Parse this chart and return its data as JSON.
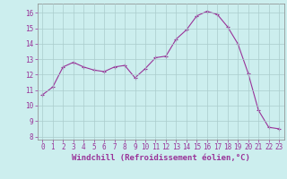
{
  "x": [
    0,
    1,
    2,
    3,
    4,
    5,
    6,
    7,
    8,
    9,
    10,
    11,
    12,
    13,
    14,
    15,
    16,
    17,
    18,
    19,
    20,
    21,
    22,
    23
  ],
  "y": [
    10.7,
    11.2,
    12.5,
    12.8,
    12.5,
    12.3,
    12.2,
    12.5,
    12.6,
    11.8,
    12.4,
    13.1,
    13.2,
    14.3,
    14.9,
    15.8,
    16.1,
    15.9,
    15.1,
    14.0,
    12.1,
    9.7,
    8.6,
    8.5
  ],
  "xlabel": "Windchill (Refroidissement éolien,°C)",
  "ylim": [
    7.8,
    16.6
  ],
  "xlim": [
    -0.5,
    23.5
  ],
  "yticks": [
    8,
    9,
    10,
    11,
    12,
    13,
    14,
    15,
    16
  ],
  "xticks": [
    0,
    1,
    2,
    3,
    4,
    5,
    6,
    7,
    8,
    9,
    10,
    11,
    12,
    13,
    14,
    15,
    16,
    17,
    18,
    19,
    20,
    21,
    22,
    23
  ],
  "line_color": "#993399",
  "marker": "+",
  "background_color": "#cceeee",
  "grid_color": "#aacccc",
  "tick_label_color": "#993399",
  "xlabel_color": "#993399",
  "tick_fontsize": 5.5,
  "xlabel_fontsize": 6.5
}
